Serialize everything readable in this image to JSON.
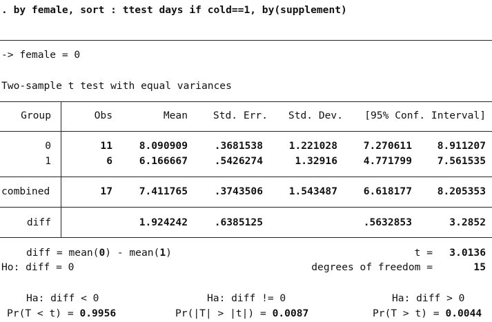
{
  "command": ". by female, sort : ttest days if cold==1, by(supplement)",
  "by_group_line": "-> female = 0",
  "test_title": "Two-sample t test with equal variances",
  "table": {
    "headers": [
      "Group",
      "Obs",
      "Mean",
      "Std. Err.",
      "Std. Dev.",
      "[95% Conf. Interval]"
    ],
    "rows": [
      {
        "group": "0",
        "obs": "11",
        "mean": "8.090909",
        "se": ".3681538",
        "sd": "1.221028",
        "ci_lo": "7.270611",
        "ci_hi": "8.911207"
      },
      {
        "group": "1",
        "obs": "6",
        "mean": "6.166667",
        "se": ".5426274",
        "sd": "1.32916",
        "ci_lo": "4.771799",
        "ci_hi": "7.561535"
      }
    ],
    "combined": {
      "group": "combined",
      "obs": "17",
      "mean": "7.411765",
      "se": ".3743506",
      "sd": "1.543487",
      "ci_lo": "6.618177",
      "ci_hi": "8.205353"
    },
    "diff": {
      "group": "diff",
      "mean": "1.924242",
      "se": ".6385125",
      "ci_lo": ".5632853",
      "ci_hi": "3.2852"
    }
  },
  "stats": {
    "diff_def_pre": "diff = mean(",
    "diff_def_g0": "0",
    "diff_def_mid": ") - mean(",
    "diff_def_g1": "1",
    "diff_def_post": ")",
    "t_label": "t =",
    "t_value": "3.0136",
    "ho": "Ho: diff = 0",
    "df_label": "degrees of freedom =",
    "df_value": "15"
  },
  "hypotheses": [
    {
      "ha": "Ha: diff < 0",
      "pr_label": "Pr(T < t) =",
      "pr_value": "0.9956"
    },
    {
      "ha": "Ha: diff != 0",
      "pr_label": "Pr(|T| > |t|) =",
      "pr_value": "0.0087"
    },
    {
      "ha": "Ha: diff > 0",
      "pr_label": "Pr(T > t) =",
      "pr_value": "0.0044"
    }
  ]
}
